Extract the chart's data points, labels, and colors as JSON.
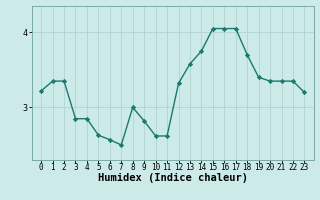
{
  "x": [
    0,
    1,
    2,
    3,
    4,
    5,
    6,
    7,
    8,
    9,
    10,
    11,
    12,
    13,
    14,
    15,
    16,
    17,
    18,
    19,
    20,
    21,
    22,
    23
  ],
  "y": [
    3.22,
    3.35,
    3.35,
    2.85,
    2.85,
    2.63,
    2.57,
    2.5,
    3.0,
    2.82,
    2.62,
    2.62,
    3.32,
    3.58,
    3.75,
    4.05,
    4.05,
    4.05,
    3.7,
    3.4,
    3.35,
    3.35,
    3.35,
    3.2
  ],
  "line_color": "#1a7a6e",
  "marker": "D",
  "markersize": 2.2,
  "linewidth": 1.0,
  "bg_color": "#cceae8",
  "grid_color": "#b0d4d0",
  "xlabel": "Humidex (Indice chaleur)",
  "ylim": [
    2.3,
    4.35
  ],
  "yticks": [
    3,
    4
  ],
  "xticks": [
    0,
    1,
    2,
    3,
    4,
    5,
    6,
    7,
    8,
    9,
    10,
    11,
    12,
    13,
    14,
    15,
    16,
    17,
    18,
    19,
    20,
    21,
    22,
    23
  ],
  "tick_fontsize": 5.5,
  "xlabel_fontsize": 7.5
}
